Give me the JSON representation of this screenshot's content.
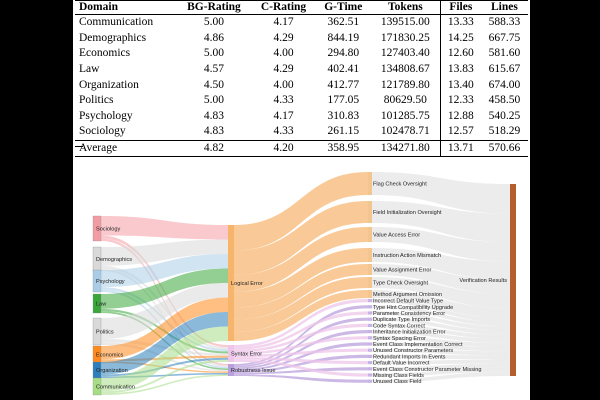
{
  "table": {
    "headers": [
      "Domain",
      "BG-Rating",
      "C-Rating",
      "G-Time",
      "Tokens",
      "Files",
      "Lines"
    ],
    "rows": [
      [
        "Communication",
        "5.00",
        "4.17",
        "362.51",
        "139515.00",
        "13.33",
        "588.33"
      ],
      [
        "Demographics",
        "4.86",
        "4.29",
        "844.19",
        "171830.25",
        "14.25",
        "667.75"
      ],
      [
        "Economics",
        "5.00",
        "4.00",
        "294.80",
        "127403.40",
        "12.60",
        "581.60"
      ],
      [
        "Law",
        "4.57",
        "4.29",
        "402.41",
        "134808.67",
        "13.83",
        "615.67"
      ],
      [
        "Organization",
        "4.50",
        "4.00",
        "412.77",
        "121789.80",
        "13.40",
        "674.00"
      ],
      [
        "Politics",
        "5.00",
        "4.33",
        "177.05",
        "80629.50",
        "12.33",
        "458.50"
      ],
      [
        "Psychology",
        "4.83",
        "4.17",
        "310.83",
        "101285.75",
        "12.88",
        "540.25"
      ],
      [
        "Sociology",
        "4.83",
        "4.33",
        "261.15",
        "102478.71",
        "12.57",
        "518.29"
      ]
    ],
    "average": [
      "Average",
      "4.82",
      "4.20",
      "358.95",
      "134271.80",
      "13.71",
      "570.66"
    ]
  },
  "sankey": {
    "domains": [
      {
        "name": "Sociology",
        "color": "#f49ca4"
      },
      {
        "name": "Demographics",
        "color": "#d9d9d9"
      },
      {
        "name": "Psychology",
        "color": "#a9cde6"
      },
      {
        "name": "Law",
        "color": "#3aa63a"
      },
      {
        "name": "Politics",
        "color": "#d9d9d9"
      },
      {
        "name": "Economics",
        "color": "#ff8a1e"
      },
      {
        "name": "Organization",
        "color": "#2c7fbc"
      },
      {
        "name": "Communication",
        "color": "#a8dd88"
      }
    ],
    "categories": [
      {
        "name": "Logical Error",
        "color": "#f7b46b"
      },
      {
        "name": "Syntax Error",
        "color": "#eec6ea"
      },
      {
        "name": "Robustness Issue",
        "color": "#b9a0dc"
      }
    ],
    "subtypes": [
      "Flag Check Oversight",
      "Field Initialization Oversight",
      "Value Access Error",
      "Instruction Action Mismatch",
      "Value Assignment Error",
      "Type Check Oversight",
      "Method Argument Omission",
      "Incorrect Default Value Type",
      "Type Hint Compatibility Upgrade",
      "Parameter Consistency Error",
      "Duplicate Type Imports",
      "Code Syntax Correct",
      "Inheritance Initialization Error",
      "Syntax Spacing Error",
      "Event Class Implementation Correct",
      "Unused Constructor Parameters",
      "Redundant Imports In Events",
      "Default Value Incorrect",
      "Event Class Constructor Parameter Missing",
      "Missing Class Fields",
      "Unused Class Field"
    ],
    "target": {
      "name": "Verification Results",
      "color": "#b5602c"
    }
  }
}
